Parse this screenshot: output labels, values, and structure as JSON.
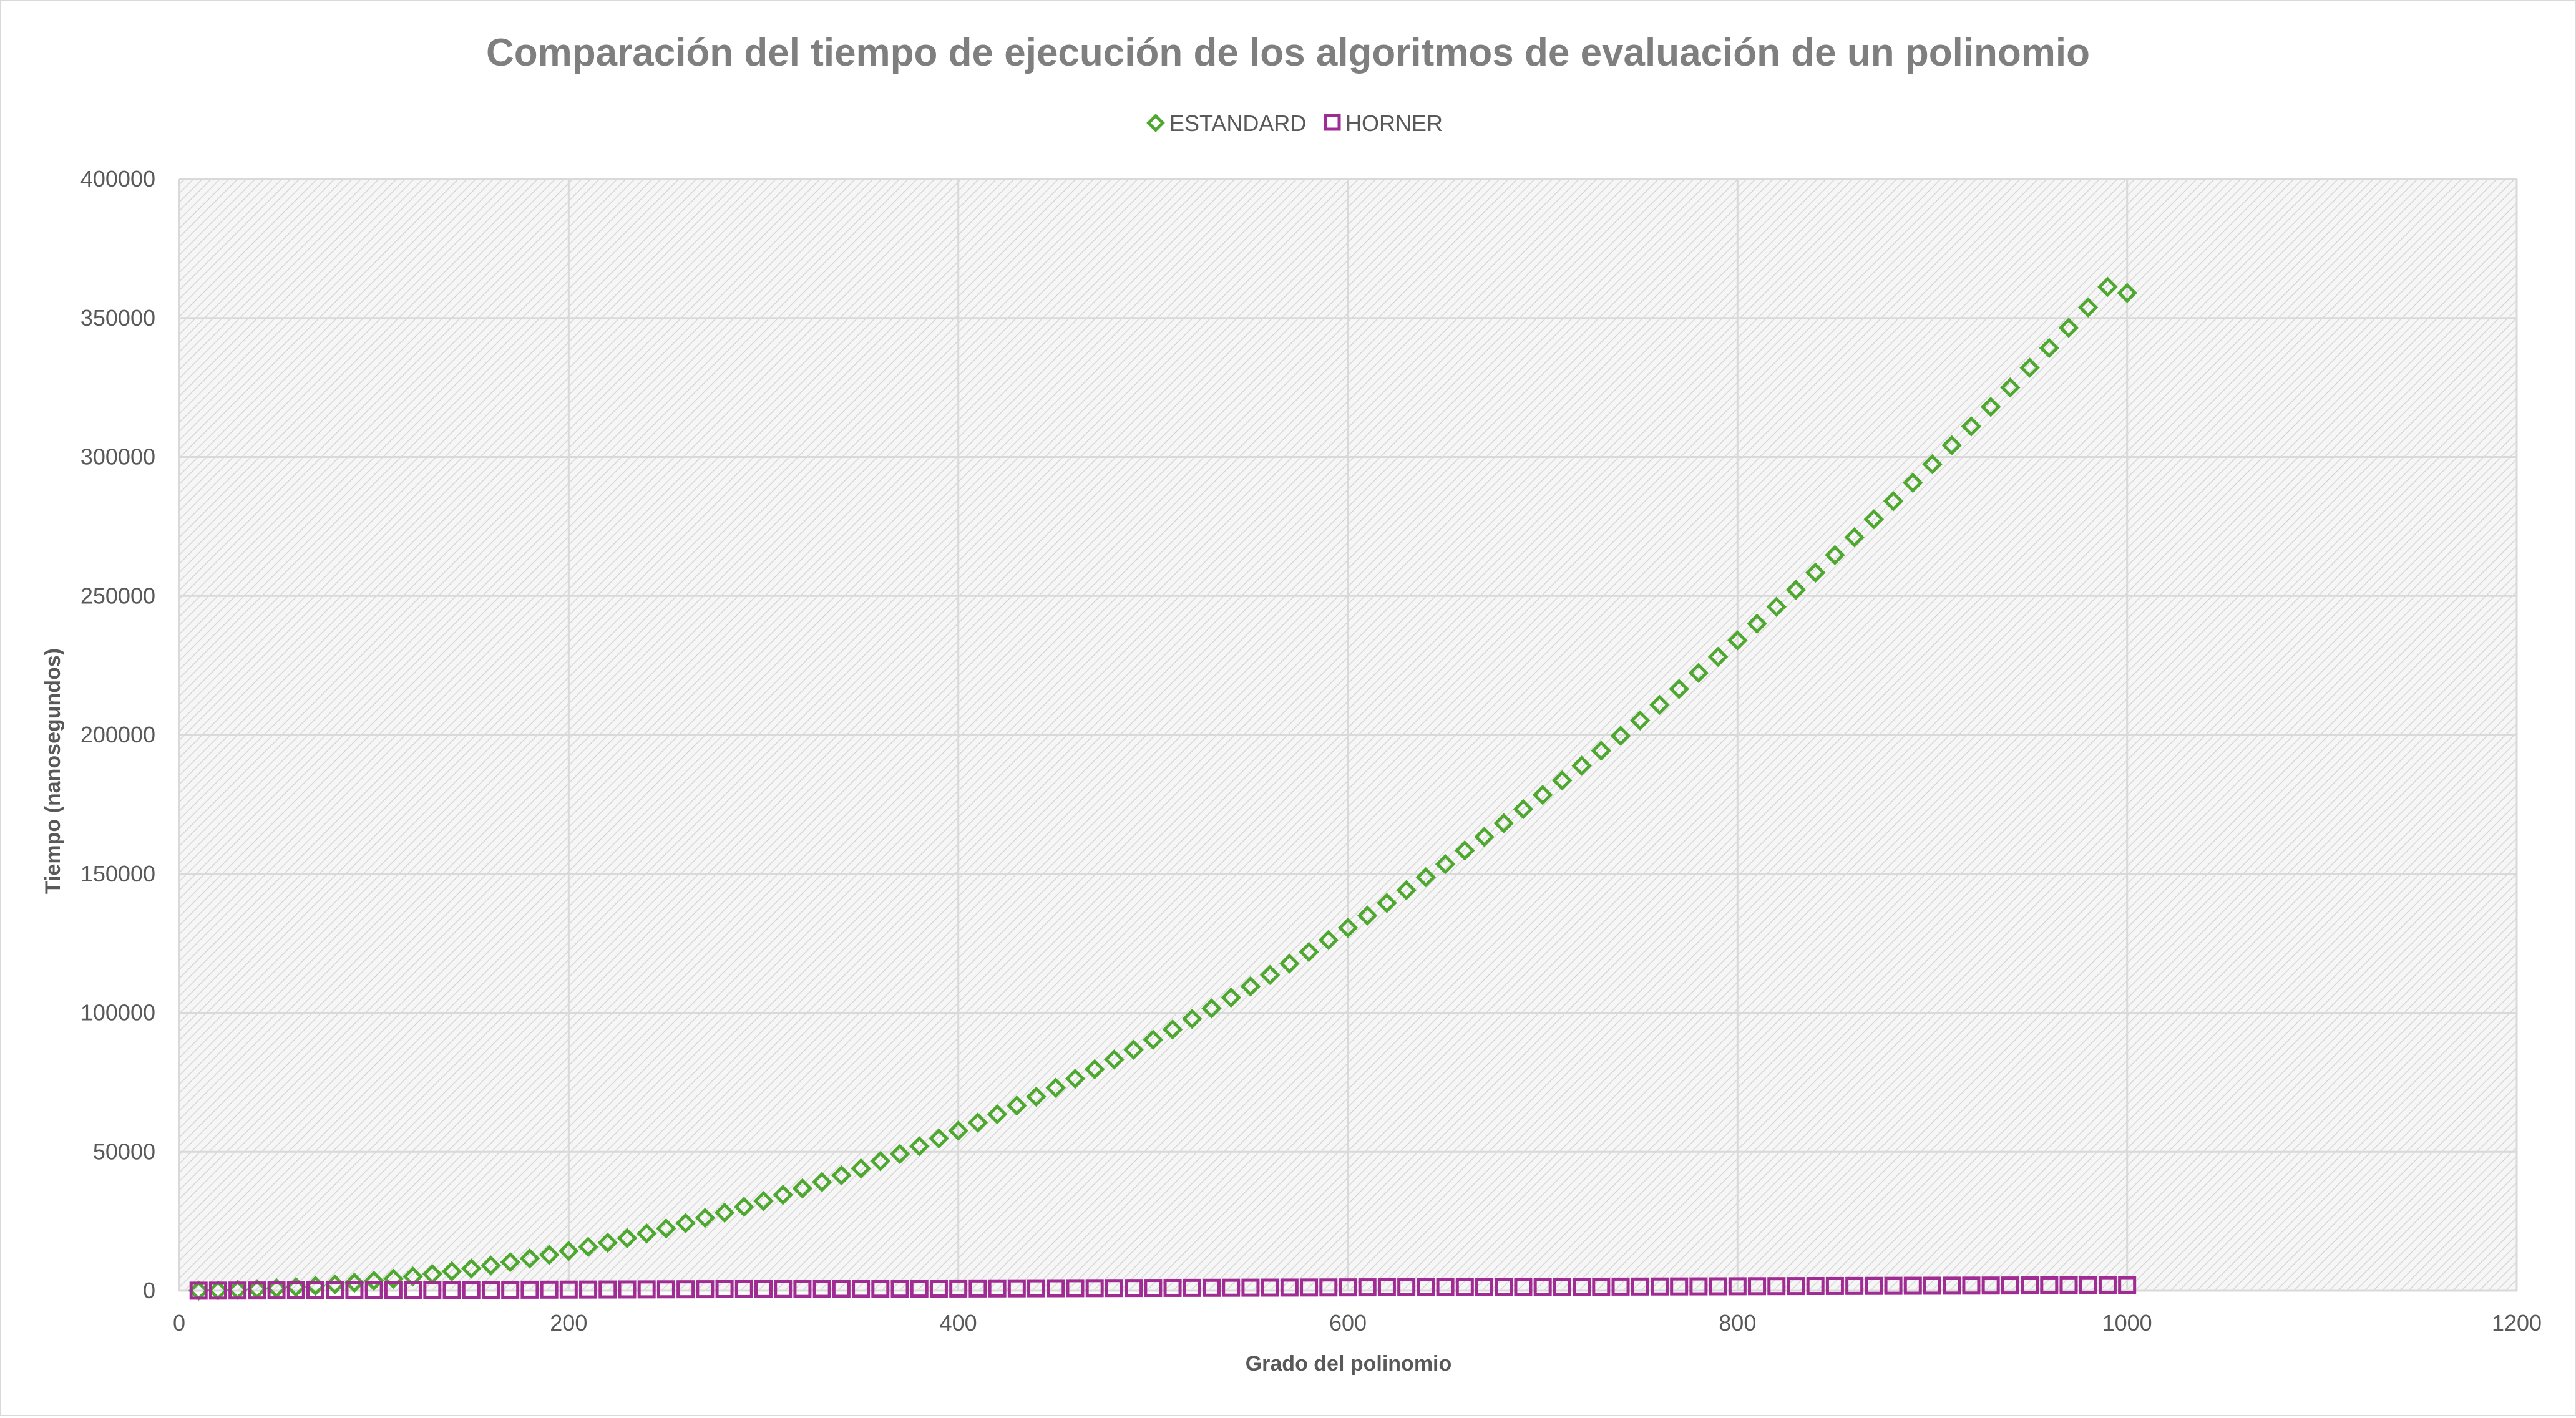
{
  "chart_data": {
    "type": "scatter",
    "title": "Comparación del tiempo de ejecución de los algoritmos de evaluación de un polinomio",
    "xlabel": "Grado del polinomio",
    "ylabel": "Tiempo (nanosegundos)",
    "xlim": [
      0,
      1200
    ],
    "ylim": [
      0,
      400000
    ],
    "x_ticks": [
      "0",
      "200",
      "400",
      "600",
      "800",
      "1000",
      "1200"
    ],
    "y_ticks": [
      "0",
      "50000",
      "100000",
      "150000",
      "200000",
      "250000",
      "300000",
      "350000",
      "400000"
    ],
    "grid": true,
    "legend_position": "top",
    "plot_background": "hatched light gray",
    "series": [
      {
        "name": "ESTANDARD",
        "marker": "diamond-open",
        "color": "#4ea72e",
        "x": [
          10,
          20,
          30,
          40,
          50,
          60,
          70,
          80,
          90,
          100,
          110,
          120,
          130,
          140,
          150,
          160,
          170,
          180,
          190,
          200,
          210,
          220,
          230,
          240,
          250,
          260,
          270,
          280,
          290,
          300,
          310,
          320,
          330,
          340,
          350,
          360,
          370,
          380,
          390,
          400,
          410,
          420,
          430,
          440,
          450,
          460,
          470,
          480,
          490,
          500,
          510,
          520,
          530,
          540,
          550,
          560,
          570,
          580,
          590,
          600,
          610,
          620,
          630,
          640,
          650,
          660,
          670,
          680,
          690,
          700,
          710,
          720,
          730,
          740,
          750,
          760,
          770,
          780,
          790,
          800,
          810,
          820,
          830,
          840,
          850,
          860,
          870,
          880,
          890,
          900,
          910,
          920,
          930,
          940,
          950,
          960,
          970,
          980,
          990,
          1000
        ],
        "y": [
          40,
          150,
          330,
          580,
          900,
          1300,
          1770,
          2300,
          2900,
          3600,
          4300,
          5100,
          6000,
          7000,
          8000,
          9100,
          10300,
          11600,
          12900,
          14300,
          15800,
          17300,
          18900,
          20600,
          22400,
          24300,
          26200,
          28100,
          30200,
          32300,
          34500,
          36800,
          39100,
          41500,
          44000,
          46600,
          49200,
          52000,
          54800,
          57600,
          60500,
          63500,
          66600,
          69800,
          73000,
          76300,
          79700,
          83200,
          86700,
          90300,
          94000,
          97800,
          101600,
          105500,
          109500,
          113600,
          117700,
          121900,
          126200,
          130600,
          135000,
          139500,
          144100,
          148800,
          153500,
          158400,
          163300,
          168200,
          173300,
          178400,
          183600,
          188900,
          194300,
          199700,
          205200,
          210800,
          216500,
          222300,
          228100,
          234000,
          240000,
          246100,
          252200,
          258400,
          264700,
          271100,
          277600,
          284100,
          290700,
          297400,
          304200,
          311000,
          318000,
          325000,
          332100,
          339200,
          346500,
          353800,
          361200,
          359000
        ]
      },
      {
        "name": "HORNER",
        "marker": "square-open",
        "color": "#a02b93",
        "x": [
          10,
          20,
          30,
          40,
          50,
          60,
          70,
          80,
          90,
          100,
          110,
          120,
          130,
          140,
          150,
          160,
          170,
          180,
          190,
          200,
          210,
          220,
          230,
          240,
          250,
          260,
          270,
          280,
          290,
          300,
          310,
          320,
          330,
          340,
          350,
          360,
          370,
          380,
          390,
          400,
          410,
          420,
          430,
          440,
          450,
          460,
          470,
          480,
          490,
          500,
          510,
          520,
          530,
          540,
          550,
          560,
          570,
          580,
          590,
          600,
          610,
          620,
          630,
          640,
          650,
          660,
          670,
          680,
          690,
          700,
          710,
          720,
          730,
          740,
          750,
          760,
          770,
          780,
          790,
          800,
          810,
          820,
          830,
          840,
          850,
          860,
          870,
          880,
          890,
          900,
          910,
          920,
          930,
          940,
          950,
          960,
          970,
          980,
          990,
          1000
        ],
        "y": [
          20,
          40,
          60,
          80,
          100,
          120,
          140,
          160,
          180,
          200,
          220,
          240,
          260,
          280,
          300,
          320,
          340,
          360,
          380,
          400,
          420,
          440,
          460,
          480,
          500,
          520,
          540,
          560,
          580,
          600,
          620,
          640,
          660,
          680,
          700,
          720,
          740,
          760,
          780,
          800,
          820,
          840,
          860,
          880,
          900,
          920,
          940,
          960,
          980,
          1000,
          1020,
          1040,
          1060,
          1080,
          1100,
          1120,
          1140,
          1160,
          1180,
          1200,
          1220,
          1240,
          1260,
          1280,
          1300,
          1320,
          1340,
          1360,
          1380,
          1400,
          1420,
          1440,
          1460,
          1480,
          1500,
          1520,
          1540,
          1560,
          1580,
          1600,
          1620,
          1640,
          1660,
          1680,
          1700,
          1720,
          1740,
          1760,
          1780,
          1800,
          1820,
          1840,
          1860,
          1880,
          1900,
          1920,
          1940,
          1960,
          1980,
          2000
        ]
      }
    ]
  }
}
